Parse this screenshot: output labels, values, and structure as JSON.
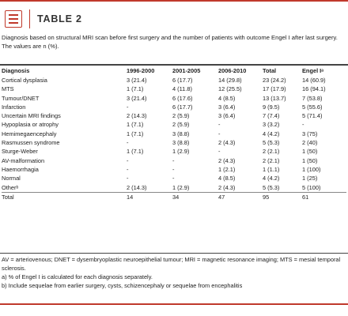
{
  "header": {
    "label": "TABLE 2"
  },
  "caption": "Diagnosis based on structural MRI scan before first surgery and the number of patients with outcome Engel I after last surgery. The values are n (%).",
  "columns": [
    "Diagnosis",
    "1996-2000",
    "2001-2005",
    "2006-2010",
    "Total",
    "Engel Iᵃ"
  ],
  "rows": [
    [
      "Cortical dysplasia",
      "3 (21.4)",
      "6 (17.7)",
      "14 (29.8)",
      "23 (24.2)",
      "14 (60.9)"
    ],
    [
      "MTS",
      "1 (7.1)",
      "4 (11.8)",
      "12 (25.5)",
      "17 (17.9)",
      "16 (94.1)"
    ],
    [
      "Tumour/DNET",
      "3 (21.4)",
      "6 (17.6)",
      "4 (8.5)",
      "13 (13.7)",
      "7 (53.8)"
    ],
    [
      "Infarction",
      "-",
      "6 (17.7)",
      "3 (6.4)",
      "9 (9.5)",
      "5 (55.6)"
    ],
    [
      "Uncertain MRI findings",
      "2 (14.3)",
      "2 (5.9)",
      "3 (6.4)",
      "7 (7.4)",
      "5 (71.4)"
    ],
    [
      "Hypoplasia or atrophy",
      "1 (7.1)",
      "2 (5.9)",
      "-",
      "3 (3.2)",
      "-"
    ],
    [
      "Hemimegaencephaly",
      "1 (7.1)",
      "3 (8.8)",
      "-",
      "4 (4.2)",
      "3 (75)"
    ],
    [
      "Rasmussen syndrome",
      "-",
      "3 (8.8)",
      "2 (4.3)",
      "5 (5.3)",
      "2 (40)"
    ],
    [
      "Sturge-Weber",
      "1 (7.1)",
      "1 (2.9)",
      "-",
      "2 (2.1)",
      "1 (50)"
    ],
    [
      "AV-malformation",
      "-",
      "-",
      "2 (4.3)",
      "2 (2.1)",
      "1 (50)"
    ],
    [
      "Haemorrhagia",
      "-",
      "-",
      "1 (2.1)",
      "1 (1.1)",
      "1 (100)"
    ],
    [
      "Normal",
      "-",
      "-",
      "4 (8.5)",
      "4 (4.2)",
      "1 (25)"
    ],
    [
      "Otherᵇ",
      "2 (14.3)",
      "1 (2.9)",
      "2 (4.3)",
      "5 (5.3)",
      "5 (100)"
    ]
  ],
  "total_row": [
    "Total",
    "14",
    "34",
    "47",
    "95",
    "61"
  ],
  "footnotes": [
    "AV = arteriovenous;  DNET = dysembryoplastic neuroepithelial tumour;  MRI = magnetic resonance imaging;  MTS = mesial temporal sclerosis.",
    "a) % of Engel I is calculated for each diagnosis separately.",
    "b) Include sequelae from earlier surgery, cysts, schizencephaly or sequelae from encephalitis"
  ],
  "colors": {
    "accent": "#c0392b",
    "rule": "#444444"
  },
  "icons": {
    "header_icon": "table-list-icon"
  }
}
